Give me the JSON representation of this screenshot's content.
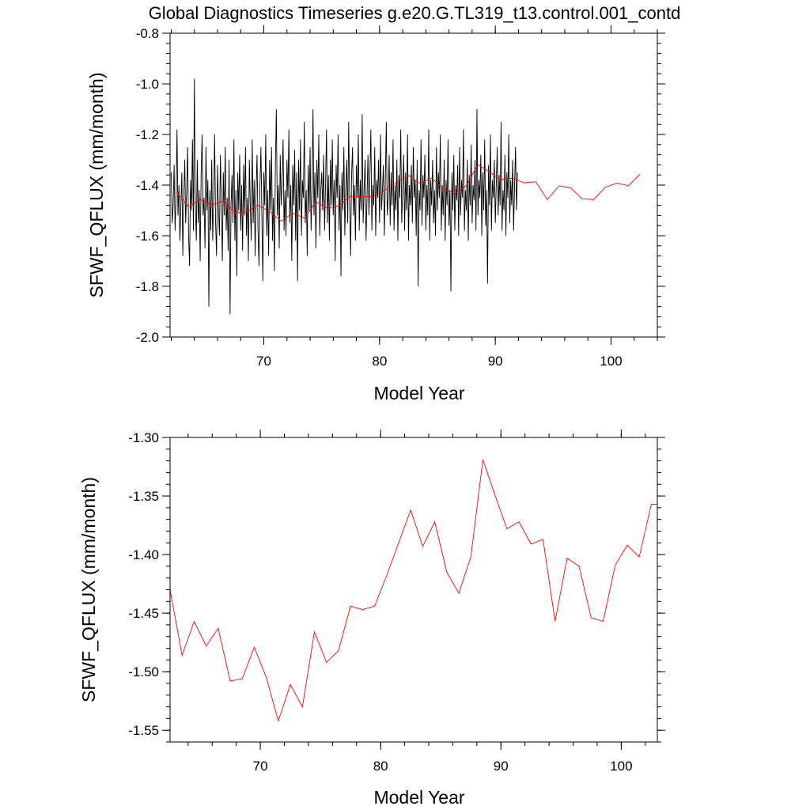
{
  "figure_title": "Global Diagnostics Timeseries g.e20.G.TL319_t13.control.001_contd",
  "colors": {
    "monthly_line": "#000000",
    "annual_line": "#ff0000",
    "axes": "#000000"
  },
  "chart_data": [
    {
      "type": "line",
      "title": "Global Diagnostics Timeseries g.e20.G.TL319_t13.control.001_contd",
      "xlabel": "Model Year",
      "ylabel": "SFWF_QFLUX (mm/month)",
      "xlim": [
        61.9,
        104.0
      ],
      "ylim": [
        -2.0,
        -0.8
      ],
      "xticks": [
        70,
        80,
        90,
        100
      ],
      "xtick_labels": [
        "70",
        "80",
        "90",
        "100"
      ],
      "yticks": [
        -2.0,
        -1.8,
        -1.6,
        -1.4,
        -1.2,
        -1.0,
        -0.8
      ],
      "ytick_labels": [
        "-2.0",
        "-1.8",
        "-1.6",
        "-1.4",
        "-1.2",
        "-1.0",
        "-0.8"
      ],
      "series": [
        {
          "name": "monthly",
          "color": "#000000",
          "x_start": 62.0,
          "x_step": 0.08333,
          "values": [
            -1.35,
            -1.55,
            -1.48,
            -1.32,
            -1.58,
            -1.45,
            -1.18,
            -1.52,
            -1.4,
            -1.62,
            -1.48,
            -1.35,
            -1.68,
            -1.45,
            -1.3,
            -1.55,
            -1.42,
            -1.25,
            -1.6,
            -1.72,
            -1.38,
            -1.5,
            -1.22,
            -1.58,
            -0.98,
            -1.48,
            -1.62,
            -1.3,
            -1.55,
            -1.42,
            -1.7,
            -1.36,
            -1.2,
            -1.52,
            -1.45,
            -1.65,
            -1.25,
            -1.5,
            -1.38,
            -1.88,
            -1.42,
            -1.58,
            -1.3,
            -1.62,
            -1.45,
            -1.2,
            -1.55,
            -1.68,
            -1.32,
            -1.5,
            -1.6,
            -1.28,
            -1.48,
            -1.7,
            -1.35,
            -1.52,
            -1.25,
            -1.58,
            -1.45,
            -1.66,
            -1.3,
            -1.91,
            -1.48,
            -1.36,
            -1.55,
            -1.22,
            -1.62,
            -1.42,
            -1.76,
            -1.35,
            -1.5,
            -1.28,
            -1.58,
            -1.4,
            -1.66,
            -1.32,
            -1.52,
            -1.25,
            -1.6,
            -1.45,
            -1.7,
            -1.3,
            -1.48,
            -1.62,
            -1.22,
            -1.55,
            -1.38,
            -1.68,
            -1.42,
            -1.28,
            -1.58,
            -1.72,
            -1.4,
            -1.25,
            -1.52,
            -1.78,
            -1.35,
            -1.48,
            -1.2,
            -1.6,
            -1.42,
            -1.68,
            -1.3,
            -1.5,
            -1.25,
            -1.62,
            -1.45,
            -1.74,
            -1.32,
            -1.1,
            -1.52,
            -1.4,
            -1.65,
            -1.28,
            -1.48,
            -1.38,
            -1.22,
            -1.58,
            -1.42,
            -1.6,
            -1.3,
            -1.45,
            -1.18,
            -1.55,
            -1.4,
            -1.7,
            -1.32,
            -1.48,
            -1.26,
            -1.62,
            -1.35,
            -1.78,
            -1.3,
            -1.5,
            -1.22,
            -1.6,
            -1.38,
            -1.45,
            -1.15,
            -1.55,
            -1.42,
            -1.68,
            -1.32,
            -1.5,
            -1.25,
            -1.58,
            -1.4,
            -1.1,
            -1.52,
            -1.35,
            -1.65,
            -1.3,
            -1.45,
            -1.2,
            -1.6,
            -1.42,
            -1.35,
            -1.5,
            -1.28,
            -1.58,
            -1.4,
            -1.18,
            -1.55,
            -1.36,
            -1.62,
            -1.3,
            -1.48,
            -1.22,
            -1.52,
            -1.38,
            -1.7,
            -1.32,
            -1.45,
            -1.2,
            -1.58,
            -1.4,
            -1.76,
            -1.35,
            -1.5,
            -1.25,
            -1.6,
            -1.42,
            -1.3,
            -1.55,
            -1.15,
            -1.48,
            -1.68,
            -1.36,
            -1.25,
            -1.52,
            -1.4,
            -1.62,
            -1.32,
            -1.45,
            -1.2,
            -1.58,
            -1.38,
            -1.5,
            -1.12,
            -1.55,
            -1.42,
            -1.3,
            -1.62,
            -1.45,
            -1.28,
            -1.52,
            -1.36,
            -1.18,
            -1.58,
            -1.4,
            -1.48,
            -1.25,
            -1.6,
            -1.38,
            -1.45,
            -1.3,
            -1.55,
            -1.2,
            -1.5,
            -1.42,
            -1.32,
            -1.6,
            -1.38,
            -1.15,
            -1.52,
            -1.45,
            -1.28,
            -1.56,
            -1.35,
            -1.48,
            -1.22,
            -1.58,
            -1.4,
            -1.5,
            -1.3,
            -1.62,
            -1.36,
            -1.45,
            -1.18,
            -1.55,
            -1.42,
            -1.28,
            -1.58,
            -1.35,
            -1.5,
            -1.2,
            -1.62,
            -1.4,
            -1.48,
            -1.32,
            -1.55,
            -1.25,
            -1.45,
            -1.38,
            -1.6,
            -1.3,
            -1.8,
            -1.42,
            -1.5,
            -1.22,
            -1.56,
            -1.36,
            -1.45,
            -1.28,
            -1.58,
            -1.4,
            -1.52,
            -1.18,
            -1.62,
            -1.38,
            -1.48,
            -1.3,
            -1.55,
            -1.42,
            -1.6,
            -1.25,
            -1.5,
            -1.35,
            -1.45,
            -1.2,
            -1.58,
            -1.4,
            -1.52,
            -1.3,
            -1.62,
            -1.38,
            -1.48,
            -1.22,
            -1.56,
            -1.42,
            -1.82,
            -1.35,
            -1.5,
            -1.28,
            -1.58,
            -1.4,
            -1.46,
            -1.32,
            -1.6,
            -1.25,
            -1.52,
            -1.38,
            -1.45,
            -1.18,
            -1.58,
            -1.42,
            -1.5,
            -1.3,
            -1.62,
            -1.36,
            -1.48,
            -1.24,
            -1.55,
            -1.4,
            -1.46,
            -1.3,
            -1.58,
            -1.1,
            -1.52,
            -1.38,
            -1.45,
            -1.28,
            -1.6,
            -1.35,
            -1.5,
            -1.22,
            -1.56,
            -1.42,
            -1.79,
            -1.32,
            -1.48,
            -1.2,
            -1.58,
            -1.38,
            -1.45,
            -1.3,
            -1.55,
            -1.4,
            -1.25,
            -1.52,
            -1.36,
            -1.48,
            -1.15,
            -1.58,
            -1.42,
            -1.5,
            -1.28,
            -1.6,
            -1.35,
            -1.45,
            -1.2,
            -1.55,
            -1.38,
            -1.48,
            -1.3,
            -1.58,
            -1.4,
            -1.25,
            -1.5,
            -1.35
          ]
        },
        {
          "name": "annual_mean",
          "color": "#ff0000",
          "x": [
            62.5,
            63.5,
            64.5,
            65.5,
            66.5,
            67.5,
            68.5,
            69.5,
            70.5,
            71.5,
            72.5,
            73.5,
            74.5,
            75.5,
            76.5,
            77.5,
            78.5,
            79.5,
            80.5,
            81.5,
            82.5,
            83.5,
            84.5,
            85.5,
            86.5,
            87.5,
            88.5,
            89.5,
            90.5,
            91.5,
            92.5,
            93.5,
            94.5,
            95.5,
            96.5,
            97.5,
            98.5,
            99.5,
            100.5,
            101.5,
            102.5
          ],
          "values": [
            -1.43,
            -1.486,
            -1.457,
            -1.478,
            -1.463,
            -1.508,
            -1.506,
            -1.479,
            -1.505,
            -1.542,
            -1.511,
            -1.53,
            -1.466,
            -1.492,
            -1.482,
            -1.444,
            -1.447,
            -1.444,
            -1.418,
            -1.39,
            -1.362,
            -1.393,
            -1.372,
            -1.415,
            -1.433,
            -1.402,
            -1.319,
            -1.349,
            -1.378,
            -1.372,
            -1.391,
            -1.387,
            -1.457,
            -1.403,
            -1.41,
            -1.454,
            -1.457,
            -1.409,
            -1.392,
            -1.402,
            -1.357
          ]
        }
      ]
    },
    {
      "type": "line",
      "title": "",
      "xlabel": "Model Year",
      "ylabel": "SFWF_QFLUX (mm/month)",
      "xlim": [
        62.5,
        103.0
      ],
      "ylim": [
        -1.56,
        -1.3
      ],
      "xticks": [
        70,
        80,
        90,
        100
      ],
      "xtick_labels": [
        "70",
        "80",
        "90",
        "100"
      ],
      "yticks": [
        -1.55,
        -1.5,
        -1.45,
        -1.4,
        -1.35,
        -1.3
      ],
      "ytick_labels": [
        "-1.55",
        "-1.50",
        "-1.45",
        "-1.40",
        "-1.35",
        "-1.30"
      ],
      "series": [
        {
          "name": "annual_mean",
          "color": "#ff0000",
          "x": [
            62.5,
            63.5,
            64.5,
            65.5,
            66.5,
            67.5,
            68.5,
            69.5,
            70.5,
            71.5,
            72.5,
            73.5,
            74.5,
            75.5,
            76.5,
            77.5,
            78.5,
            79.5,
            80.5,
            81.5,
            82.5,
            83.5,
            84.5,
            85.5,
            86.5,
            87.5,
            88.5,
            89.5,
            90.5,
            91.5,
            92.5,
            93.5,
            94.5,
            95.5,
            96.5,
            97.5,
            98.5,
            99.5,
            100.5,
            101.5,
            102.5,
            103.0
          ],
          "values": [
            -1.43,
            -1.486,
            -1.457,
            -1.478,
            -1.463,
            -1.508,
            -1.506,
            -1.479,
            -1.505,
            -1.542,
            -1.511,
            -1.53,
            -1.466,
            -1.492,
            -1.482,
            -1.444,
            -1.447,
            -1.444,
            -1.418,
            -1.39,
            -1.362,
            -1.393,
            -1.372,
            -1.415,
            -1.433,
            -1.402,
            -1.319,
            -1.349,
            -1.378,
            -1.372,
            -1.391,
            -1.387,
            -1.457,
            -1.403,
            -1.41,
            -1.454,
            -1.457,
            -1.409,
            -1.392,
            -1.402,
            -1.357,
            -1.357
          ]
        }
      ]
    }
  ]
}
